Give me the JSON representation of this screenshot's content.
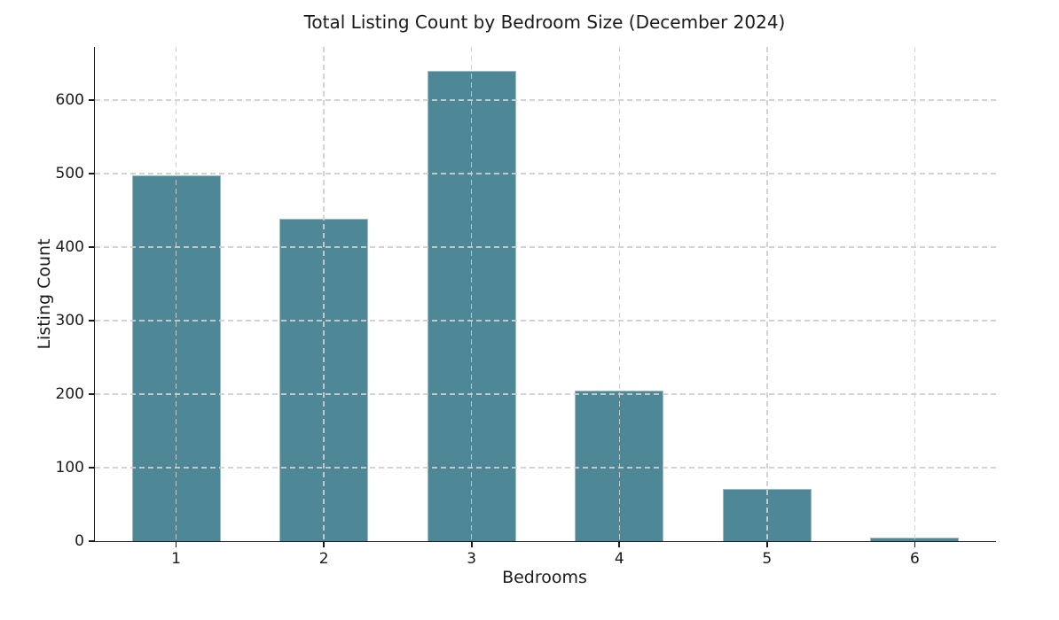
{
  "chart_data": {
    "type": "bar",
    "title": "Total Listing Count by Bedroom Size (December 2024)",
    "xlabel": "Bedrooms",
    "ylabel": "Listing Count",
    "categories": [
      "1",
      "2",
      "3",
      "4",
      "5",
      "6"
    ],
    "values": [
      497,
      438,
      640,
      205,
      71,
      5
    ],
    "yticks": [
      0,
      100,
      200,
      300,
      400,
      500,
      600
    ],
    "ylim": [
      0,
      672
    ],
    "xlim": [
      0.45,
      6.55
    ],
    "bar_width_units": 0.6,
    "grid": {
      "visible": true,
      "style": "dashed",
      "axes": "both",
      "drawn_above_bars": true
    },
    "legend": "none",
    "colors": {
      "bar": "#4e8795",
      "grid": "#cecece",
      "text": "#1a1a1a",
      "spine": "#1a1a1a",
      "background": "#ffffff"
    }
  }
}
